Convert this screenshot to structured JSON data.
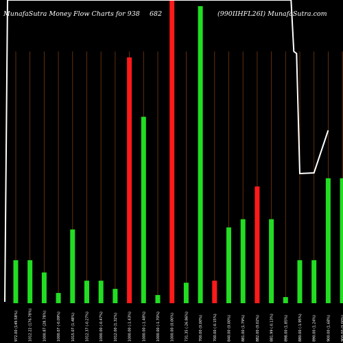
{
  "header": {
    "left": "MunafaSutra  Money Flow  Charts for 938",
    "mid": "682",
    "right": "(990IIHFL26I) MunafaSutra.com"
  },
  "colors": {
    "up": "#22dd22",
    "down": "#ff1a1a",
    "grid": "#7a3a10",
    "line": "#ffffff",
    "bg": "#000000"
  },
  "chart_data": {
    "type": "bar",
    "title": "",
    "categories": [
      "972.00 (149.58%)",
      "1012.22 (176.78%)",
      "1000.87 (28.78%)",
      "1000.07 (-0.09%)",
      "1015.07 (1.48%)",
      "1012.37 (-0.27%)",
      "1000.00 (-0.47%)",
      "1012.00 (1.32%)",
      "1000.00 (-1.43%)",
      "1000.00 (-1.48%)",
      "1000.00 (-1.70%)",
      "1000.00 (0.00%)",
      "731.35 (-26.86%)",
      "700.00 (0.00%)",
      "700.00 (-0.15%)",
      "840.00 (0.00%)",
      "881.00 (1.79%)",
      "882.00 (0.02%)",
      "881.99 (-0.13%)",
      "898.00 (1.85%)",
      "880.00 (-1.95%)",
      "890.00 (1.24%)",
      "900.00 (1.68%)",
      "900.00 (0.00%)"
    ],
    "colors": [
      "up",
      "up",
      "up",
      "up",
      "up",
      "up",
      "up",
      "up",
      "down",
      "up",
      "up",
      "down",
      "up",
      "up",
      "down",
      "up",
      "up",
      "down",
      "up",
      "up",
      "up",
      "up",
      "up",
      "up"
    ],
    "values": [
      21,
      21,
      15,
      5,
      36,
      11,
      11,
      7,
      120,
      91,
      4,
      148,
      10,
      145,
      11,
      37,
      41,
      57,
      41,
      3,
      21,
      21,
      61,
      61
    ],
    "flow_line": [
      140,
      140,
      140,
      140,
      140,
      140,
      140,
      140,
      140,
      140,
      140,
      140,
      140,
      140,
      140,
      140,
      140,
      140,
      140,
      140,
      94,
      94,
      94,
      94
    ],
    "ylim": [
      0,
      148
    ]
  }
}
